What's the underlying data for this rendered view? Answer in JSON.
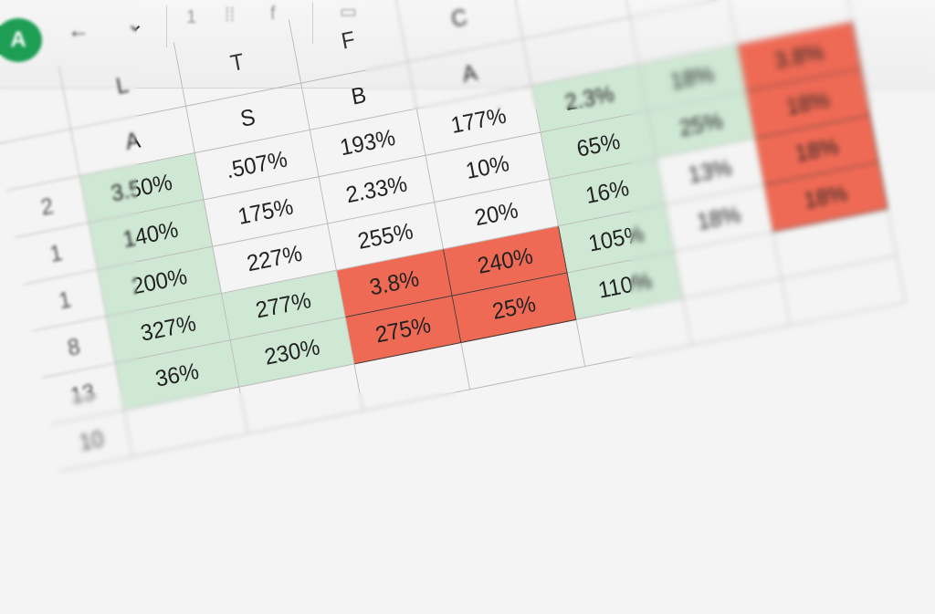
{
  "toolbar": {
    "app_icon_letter": "A",
    "back_label": "←",
    "dropdown_label": "⌄",
    "tool_labels": [
      "1",
      "⁞⁞",
      "f"
    ]
  },
  "sheet": {
    "column_headers": [
      "",
      "L",
      "T",
      "F",
      "C",
      "",
      "",
      ""
    ],
    "rows": [
      [
        "",
        "A",
        "S",
        "B",
        "A",
        "",
        "",
        ""
      ],
      [
        "2",
        "3.50%",
        ".507%",
        "193%",
        "177%",
        "2.3%",
        "18%",
        "3.8%"
      ],
      [
        "1",
        "140%",
        "175%",
        "2.33%",
        "10%",
        "65%",
        "25%",
        "18%"
      ],
      [
        "1",
        "200%",
        "227%",
        "255%",
        "20%",
        "16%",
        "13%",
        "18%"
      ],
      [
        "8",
        "327%",
        "277%",
        "3.8%",
        "240%",
        "105%",
        "18%",
        "18%"
      ],
      [
        "13",
        "36%",
        "230%",
        "275%",
        "25%",
        "110%",
        "",
        ""
      ],
      [
        "10",
        "",
        "",
        "",
        "",
        "",
        "",
        ""
      ]
    ],
    "fills": {
      "green": "#cfe8d4",
      "red": "#ef6a55"
    }
  }
}
